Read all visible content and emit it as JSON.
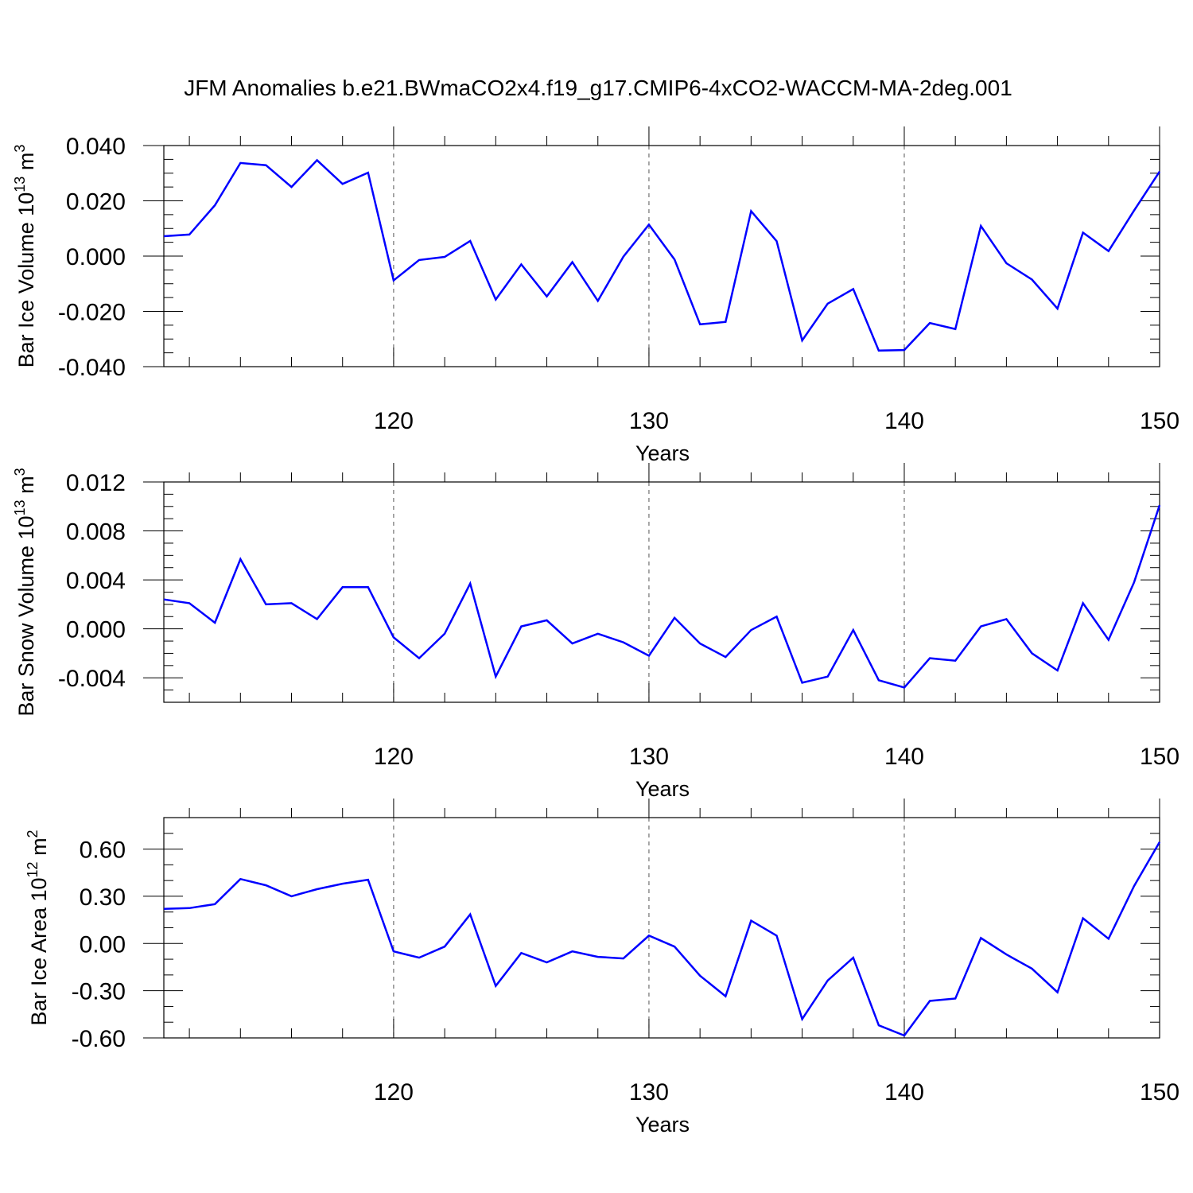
{
  "title": "JFM Anomalies b.e21.BWmaCO2x4.f19_g17.CMIP6-4xCO2-WACCM-MA-2deg.001",
  "colors": {
    "line": "#0000ff",
    "frame": "#000000"
  },
  "chart_data": [
    {
      "type": "line",
      "xlabel": "Years",
      "ylabel_prefix": "Bar Ice Volume 10",
      "ylabel_exp": "13",
      "ylabel_unit": " m",
      "ylabel_unit_exp": "3",
      "xlim": [
        111,
        150
      ],
      "ylim": [
        -0.04,
        0.04
      ],
      "x_ticks": [
        120,
        130,
        140,
        150
      ],
      "x_tick_labels": [
        "120",
        "130",
        "140",
        "150"
      ],
      "y_ticks": [
        -0.04,
        -0.02,
        0.0,
        0.02,
        0.04
      ],
      "y_tick_labels": [
        "-0.040",
        "-0.020",
        "0.000",
        "0.020",
        "0.040"
      ],
      "y_minor_step": 0.005,
      "grid_x": true,
      "x": [
        111,
        112,
        113,
        114,
        115,
        116,
        117,
        118,
        119,
        120,
        121,
        122,
        123,
        124,
        125,
        126,
        127,
        128,
        129,
        130,
        131,
        132,
        133,
        134,
        135,
        136,
        137,
        138,
        139,
        140,
        141,
        142,
        143,
        144,
        145,
        146,
        147,
        148,
        149,
        150
      ],
      "series": [
        {
          "values": [
            0.0072,
            0.0078,
            0.0184,
            0.0337,
            0.0329,
            0.025,
            0.0347,
            0.0261,
            0.0302,
            -0.0088,
            -0.0014,
            -0.0003,
            0.0055,
            -0.0157,
            -0.003,
            -0.0146,
            -0.0022,
            -0.0162,
            -0.0002,
            0.0114,
            -0.0012,
            -0.0247,
            -0.0238,
            0.0163,
            0.0054,
            -0.0305,
            -0.0172,
            -0.0119,
            -0.0342,
            -0.034,
            -0.0242,
            -0.0264,
            0.0109,
            -0.0026,
            -0.0085,
            -0.019,
            0.0085,
            0.0018,
            0.0165,
            0.0306
          ]
        }
      ]
    },
    {
      "type": "line",
      "xlabel": "Years",
      "ylabel_prefix": "Bar Snow Volume 10",
      "ylabel_exp": "13",
      "ylabel_unit": " m",
      "ylabel_unit_exp": "3",
      "xlim": [
        111,
        150
      ],
      "ylim": [
        -0.006,
        0.012
      ],
      "x_ticks": [
        120,
        130,
        140,
        150
      ],
      "x_tick_labels": [
        "120",
        "130",
        "140",
        "150"
      ],
      "y_ticks": [
        -0.004,
        0.0,
        0.004,
        0.008,
        0.012
      ],
      "y_tick_labels": [
        "-0.004",
        "0.000",
        "0.004",
        "0.008",
        "0.012"
      ],
      "y_minor_step": 0.001,
      "grid_x": true,
      "x": [
        111,
        112,
        113,
        114,
        115,
        116,
        117,
        118,
        119,
        120,
        121,
        122,
        123,
        124,
        125,
        126,
        127,
        128,
        129,
        130,
        131,
        132,
        133,
        134,
        135,
        136,
        137,
        138,
        139,
        140,
        141,
        142,
        143,
        144,
        145,
        146,
        147,
        148,
        149,
        150
      ],
      "series": [
        {
          "values": [
            0.0024,
            0.0021,
            0.0005,
            0.0057,
            0.002,
            0.0021,
            0.0008,
            0.0034,
            0.0034,
            -0.0007,
            -0.0024,
            -0.0004,
            0.0037,
            -0.0039,
            0.0002,
            0.0007,
            -0.0012,
            -0.0004,
            -0.0011,
            -0.0022,
            0.0009,
            -0.0012,
            -0.0023,
            -0.0001,
            0.001,
            -0.0044,
            -0.0039,
            -0.0001,
            -0.0042,
            -0.0048,
            -0.0024,
            -0.0026,
            0.0002,
            0.0008,
            -0.002,
            -0.0034,
            0.0021,
            -0.0009,
            0.0038,
            0.0101
          ]
        }
      ]
    },
    {
      "type": "line",
      "xlabel": "Years",
      "ylabel_prefix": "Bar Ice Area 10",
      "ylabel_exp": "12",
      "ylabel_unit": " m",
      "ylabel_unit_exp": "2",
      "xlim": [
        111,
        150
      ],
      "ylim": [
        -0.6,
        0.8
      ],
      "x_ticks": [
        120,
        130,
        140,
        150
      ],
      "x_tick_labels": [
        "120",
        "130",
        "140",
        "150"
      ],
      "y_ticks": [
        -0.6,
        -0.3,
        0.0,
        0.3,
        0.6
      ],
      "y_tick_labels": [
        "-0.60",
        "-0.30",
        "0.00",
        "0.30",
        "0.60"
      ],
      "y_minor_step": 0.1,
      "grid_x": true,
      "x": [
        111,
        112,
        113,
        114,
        115,
        116,
        117,
        118,
        119,
        120,
        121,
        122,
        123,
        124,
        125,
        126,
        127,
        128,
        129,
        130,
        131,
        132,
        133,
        134,
        135,
        136,
        137,
        138,
        139,
        140,
        141,
        142,
        143,
        144,
        145,
        146,
        147,
        148,
        149,
        150
      ],
      "series": [
        {
          "values": [
            0.22,
            0.225,
            0.25,
            0.41,
            0.37,
            0.3,
            0.345,
            0.38,
            0.405,
            -0.05,
            -0.09,
            -0.02,
            0.185,
            -0.27,
            -0.06,
            -0.12,
            -0.05,
            -0.085,
            -0.095,
            0.05,
            -0.02,
            -0.205,
            -0.335,
            0.145,
            0.05,
            -0.48,
            -0.235,
            -0.09,
            -0.52,
            -0.585,
            -0.365,
            -0.35,
            0.035,
            -0.07,
            -0.16,
            -0.31,
            0.16,
            0.03,
            0.365,
            0.645
          ]
        }
      ]
    }
  ]
}
